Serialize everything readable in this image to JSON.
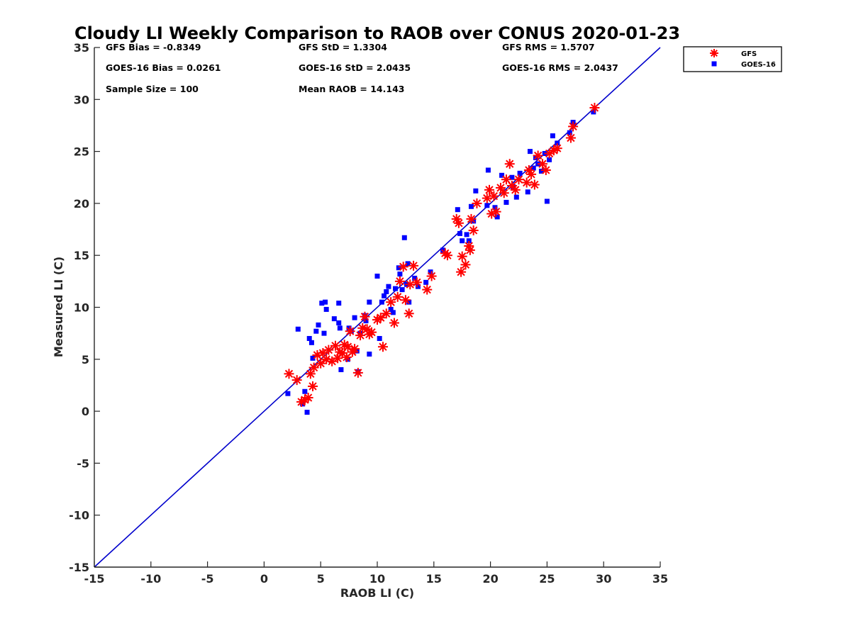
{
  "chart_data": {
    "type": "scatter",
    "title": "Cloudy LI Weekly Comparison to RAOB over CONUS 2020-01-23",
    "xlabel": "RAOB LI (C)",
    "ylabel": "Measured LI (C)",
    "xlim": [
      -15,
      35
    ],
    "ylim": [
      -15,
      35
    ],
    "xticks": [
      -15,
      -10,
      -5,
      0,
      5,
      10,
      15,
      20,
      25,
      30,
      35
    ],
    "yticks": [
      -15,
      -10,
      -5,
      0,
      5,
      10,
      15,
      20,
      25,
      30,
      35
    ],
    "grid": false,
    "legend_position": "outside top-right",
    "reference_line": {
      "type": "one-to-one",
      "from": [
        -15,
        -15
      ],
      "to": [
        35,
        35
      ],
      "color": "#0000cc"
    },
    "stats": [
      [
        "GFS Bias = -0.8349",
        "GFS StD = 1.3304",
        "GFS RMS = 1.5707"
      ],
      [
        "GOES-16 Bias = 0.0261",
        "GOES-16 StD = 2.0435",
        "GOES-16 RMS = 2.0437"
      ],
      [
        "Sample Size = 100",
        "Mean RAOB = 14.143",
        ""
      ]
    ],
    "series": [
      {
        "name": "GFS",
        "marker": "asterisk",
        "color": "#ff0000",
        "points": [
          [
            2.2,
            3.6
          ],
          [
            2.9,
            3.0
          ],
          [
            3.3,
            0.9
          ],
          [
            3.6,
            1.1
          ],
          [
            3.9,
            1.3
          ],
          [
            4.1,
            3.6
          ],
          [
            4.3,
            2.4
          ],
          [
            4.4,
            4.2
          ],
          [
            4.7,
            5.4
          ],
          [
            5.0,
            4.6
          ],
          [
            5.2,
            5.6
          ],
          [
            5.5,
            5.0
          ],
          [
            5.7,
            5.9
          ],
          [
            6.0,
            4.8
          ],
          [
            6.3,
            6.3
          ],
          [
            6.5,
            5.1
          ],
          [
            6.7,
            5.7
          ],
          [
            6.9,
            5.6
          ],
          [
            7.1,
            6.4
          ],
          [
            7.3,
            5.2
          ],
          [
            7.4,
            6.2
          ],
          [
            7.6,
            7.7
          ],
          [
            7.8,
            5.7
          ],
          [
            8.0,
            6.0
          ],
          [
            8.3,
            3.7
          ],
          [
            8.5,
            7.3
          ],
          [
            8.7,
            8.0
          ],
          [
            8.9,
            9.1
          ],
          [
            9.1,
            7.9
          ],
          [
            9.3,
            7.4
          ],
          [
            9.5,
            7.6
          ],
          [
            10.0,
            8.8
          ],
          [
            10.3,
            9.0
          ],
          [
            10.5,
            6.2
          ],
          [
            10.8,
            9.4
          ],
          [
            11.2,
            10.5
          ],
          [
            11.5,
            8.5
          ],
          [
            11.8,
            11.0
          ],
          [
            12.0,
            12.5
          ],
          [
            12.3,
            13.9
          ],
          [
            12.5,
            10.7
          ],
          [
            12.8,
            9.4
          ],
          [
            12.9,
            12.2
          ],
          [
            13.2,
            14.0
          ],
          [
            13.5,
            12.4
          ],
          [
            14.4,
            11.7
          ],
          [
            14.8,
            13.0
          ],
          [
            16.0,
            15.2
          ],
          [
            16.2,
            15.0
          ],
          [
            17.0,
            18.5
          ],
          [
            17.2,
            18.1
          ],
          [
            17.4,
            13.4
          ],
          [
            17.5,
            14.9
          ],
          [
            17.8,
            14.1
          ],
          [
            18.1,
            15.9
          ],
          [
            18.2,
            15.5
          ],
          [
            18.3,
            18.5
          ],
          [
            18.5,
            17.4
          ],
          [
            18.8,
            20.0
          ],
          [
            19.7,
            20.5
          ],
          [
            19.9,
            21.3
          ],
          [
            20.1,
            19.0
          ],
          [
            20.3,
            20.7
          ],
          [
            20.5,
            19.2
          ],
          [
            20.9,
            21.5
          ],
          [
            21.2,
            21.0
          ],
          [
            21.4,
            22.3
          ],
          [
            21.7,
            23.8
          ],
          [
            21.9,
            21.7
          ],
          [
            22.2,
            21.3
          ],
          [
            22.5,
            22.3
          ],
          [
            23.2,
            22.0
          ],
          [
            23.4,
            23.2
          ],
          [
            23.6,
            22.8
          ],
          [
            23.9,
            21.8
          ],
          [
            24.2,
            24.6
          ],
          [
            24.6,
            23.8
          ],
          [
            24.9,
            23.2
          ],
          [
            25.2,
            24.8
          ],
          [
            25.6,
            25.1
          ],
          [
            25.9,
            25.3
          ],
          [
            27.1,
            26.3
          ],
          [
            27.3,
            27.4
          ],
          [
            29.2,
            29.2
          ]
        ]
      },
      {
        "name": "GOES-16",
        "marker": "square",
        "color": "#0000ff",
        "points": [
          [
            2.1,
            1.7
          ],
          [
            3.0,
            7.9
          ],
          [
            3.4,
            0.7
          ],
          [
            3.6,
            1.9
          ],
          [
            3.8,
            -0.1
          ],
          [
            4.0,
            7.0
          ],
          [
            4.2,
            6.6
          ],
          [
            4.3,
            5.1
          ],
          [
            4.6,
            7.7
          ],
          [
            4.8,
            8.3
          ],
          [
            5.1,
            10.4
          ],
          [
            5.3,
            7.5
          ],
          [
            5.4,
            10.5
          ],
          [
            5.5,
            9.8
          ],
          [
            6.2,
            8.9
          ],
          [
            6.6,
            10.4
          ],
          [
            6.6,
            8.5
          ],
          [
            6.7,
            8.0
          ],
          [
            6.8,
            4.0
          ],
          [
            7.4,
            5.0
          ],
          [
            7.5,
            8.0
          ],
          [
            7.7,
            7.7
          ],
          [
            8.0,
            9.0
          ],
          [
            8.2,
            5.8
          ],
          [
            8.3,
            3.8
          ],
          [
            8.5,
            7.5
          ],
          [
            8.9,
            9.2
          ],
          [
            9.0,
            8.7
          ],
          [
            9.3,
            5.5
          ],
          [
            9.3,
            10.5
          ],
          [
            10.0,
            13.0
          ],
          [
            10.2,
            7.0
          ],
          [
            10.4,
            10.5
          ],
          [
            10.6,
            11.1
          ],
          [
            10.8,
            11.5
          ],
          [
            11.0,
            12.0
          ],
          [
            11.2,
            9.8
          ],
          [
            11.4,
            9.5
          ],
          [
            11.6,
            11.8
          ],
          [
            11.9,
            13.8
          ],
          [
            12.0,
            13.2
          ],
          [
            12.2,
            11.7
          ],
          [
            12.4,
            16.7
          ],
          [
            12.6,
            12.2
          ],
          [
            12.7,
            14.2
          ],
          [
            12.8,
            10.5
          ],
          [
            13.3,
            12.8
          ],
          [
            13.6,
            12.0
          ],
          [
            14.3,
            12.4
          ],
          [
            14.7,
            13.4
          ],
          [
            15.8,
            15.5
          ],
          [
            17.1,
            19.4
          ],
          [
            17.3,
            17.1
          ],
          [
            17.5,
            16.4
          ],
          [
            17.9,
            17.0
          ],
          [
            18.1,
            16.4
          ],
          [
            18.3,
            19.7
          ],
          [
            18.5,
            18.3
          ],
          [
            18.7,
            21.2
          ],
          [
            19.7,
            19.8
          ],
          [
            19.8,
            23.2
          ],
          [
            20.4,
            19.6
          ],
          [
            20.6,
            18.7
          ],
          [
            21.0,
            22.7
          ],
          [
            21.4,
            20.1
          ],
          [
            21.9,
            22.5
          ],
          [
            22.0,
            21.6
          ],
          [
            22.3,
            20.6
          ],
          [
            22.6,
            22.9
          ],
          [
            23.3,
            21.1
          ],
          [
            23.5,
            25.0
          ],
          [
            23.8,
            23.4
          ],
          [
            24.0,
            24.4
          ],
          [
            24.2,
            23.8
          ],
          [
            24.5,
            23.1
          ],
          [
            24.8,
            24.8
          ],
          [
            25.0,
            20.2
          ],
          [
            25.2,
            24.2
          ],
          [
            25.5,
            26.5
          ],
          [
            25.9,
            25.8
          ],
          [
            27.0,
            26.8
          ],
          [
            27.3,
            27.8
          ],
          [
            29.1,
            28.8
          ]
        ]
      }
    ]
  }
}
